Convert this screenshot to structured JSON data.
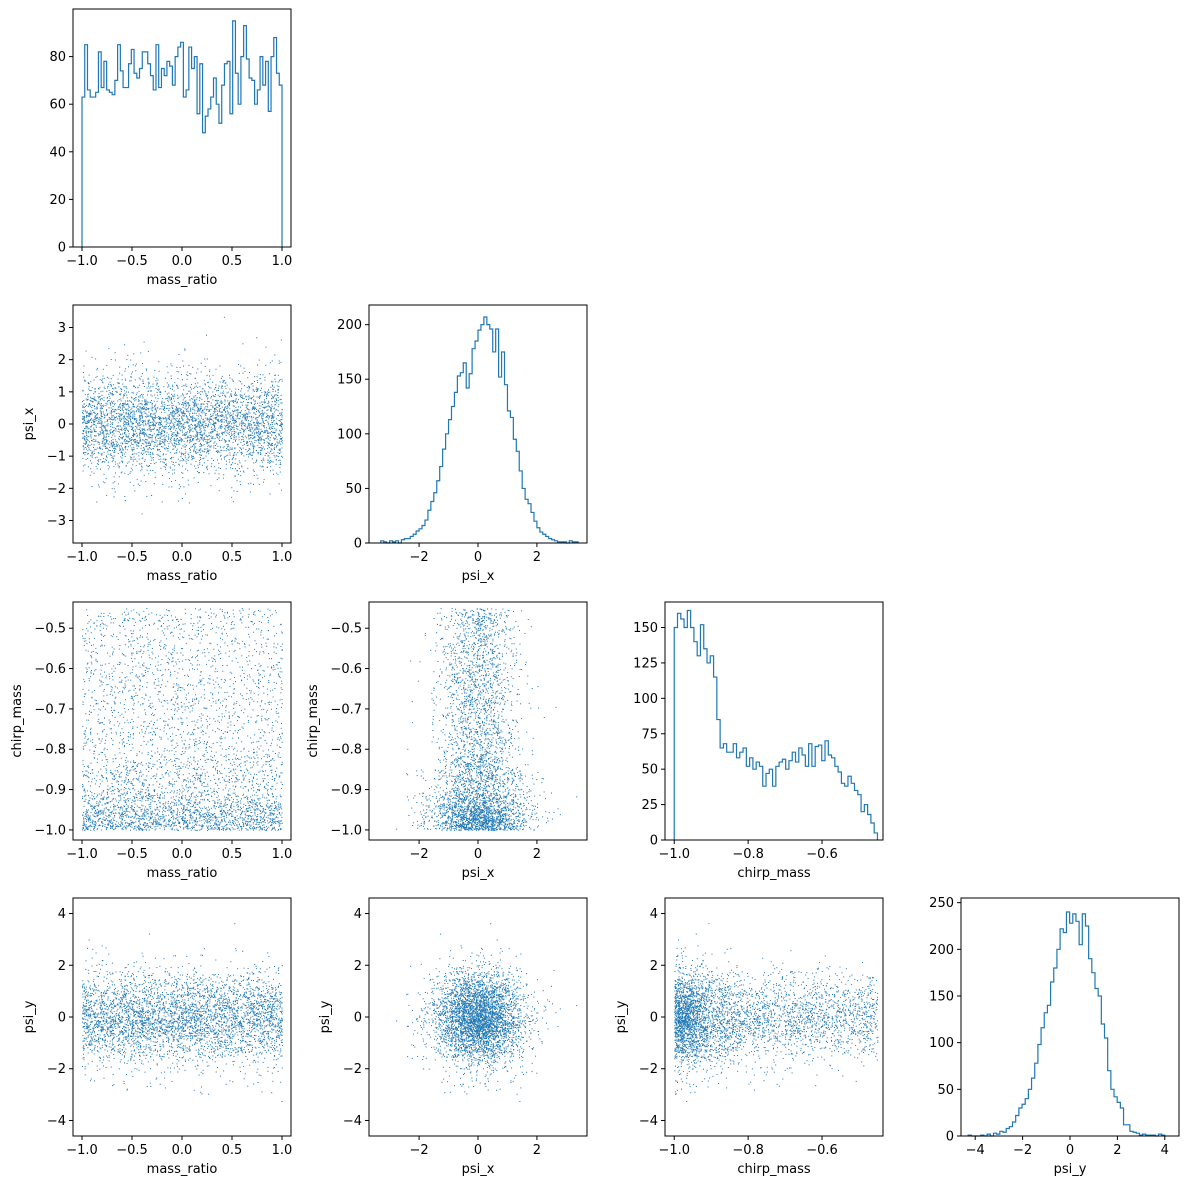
{
  "colors": {
    "accent": "#1f77b4"
  },
  "chart_data": {
    "type": "pair-grid",
    "variables": [
      "mass_ratio",
      "psi_x",
      "chirp_mass",
      "psi_y"
    ],
    "ranges": {
      "mass_ratio": [
        -1.09,
        1.09
      ],
      "psi_x": [
        -3.7,
        3.7
      ],
      "chirp_mass": [
        -1.025,
        -0.435
      ],
      "psi_y": [
        -4.6,
        4.6
      ]
    },
    "ticks": {
      "mass_ratio": [
        -1.0,
        -0.5,
        0.0,
        0.5,
        1.0
      ],
      "psi_x": [
        -3,
        -2,
        -1,
        0,
        1,
        2,
        3
      ],
      "psi_x_hist": [
        -2,
        0,
        2
      ],
      "chirp_mass": [
        -1.0,
        -0.9,
        -0.8,
        -0.7,
        -0.6,
        -0.5
      ],
      "chirp_mass_hist": [
        -1.0,
        -0.8,
        -0.6
      ],
      "psi_y": [
        -4,
        -2,
        0,
        2,
        4
      ]
    },
    "tick_labels": {
      "mass_ratio": [
        "−1.0",
        "−0.5",
        "0.0",
        "0.5",
        "1.0"
      ],
      "psi_x": [
        "−3",
        "−2",
        "−1",
        "0",
        "1",
        "2",
        "3"
      ],
      "psi_x_hist": [
        "−2",
        "0",
        "2"
      ],
      "chirp_mass": [
        "−1.0",
        "−0.9",
        "−0.8",
        "−0.7",
        "−0.6",
        "−0.5"
      ],
      "chirp_mass_hist": [
        "−1.0",
        "−0.8",
        "−0.6"
      ],
      "psi_y": [
        "−4",
        "−2",
        "0",
        "2",
        "4"
      ]
    },
    "histograms": [
      {
        "variable": "mass_ratio",
        "x_start": -1.0,
        "x_end": 1.0,
        "ylim": [
          0,
          100
        ],
        "yticks": [
          0,
          20,
          40,
          60,
          80
        ],
        "ytick_labels": [
          "0",
          "20",
          "40",
          "60",
          "80"
        ],
        "counts": [
          63,
          85,
          66,
          63,
          63,
          65,
          82,
          67,
          78,
          66,
          65,
          64,
          70,
          85,
          74,
          67,
          67,
          77,
          83,
          73,
          71,
          75,
          82,
          82,
          77,
          72,
          66,
          85,
          67,
          75,
          72,
          78,
          76,
          68,
          80,
          84,
          86,
          63,
          66,
          84,
          75,
          80,
          56,
          77,
          48,
          55,
          58,
          63,
          71,
          60,
          52,
          68,
          77,
          78,
          56,
          95,
          73,
          60,
          80,
          93,
          79,
          71,
          70,
          60,
          66,
          80,
          68,
          78,
          57,
          80,
          88,
          73,
          68
        ]
      },
      {
        "variable": "psi_x",
        "x_start": -3.3,
        "x_end": 3.4,
        "ylim": [
          0,
          218
        ],
        "yticks": [
          0,
          50,
          100,
          150,
          200
        ],
        "ytick_labels": [
          "0",
          "50",
          "100",
          "150",
          "200"
        ],
        "counts": [
          2,
          1,
          0,
          2,
          1,
          2,
          0,
          3,
          4,
          4,
          6,
          8,
          11,
          13,
          16,
          21,
          30,
          38,
          46,
          57,
          70,
          86,
          100,
          113,
          125,
          138,
          153,
          156,
          165,
          142,
          155,
          178,
          185,
          195,
          200,
          207,
          200,
          196,
          175,
          196,
          152,
          175,
          145,
          121,
          115,
          95,
          84,
          66,
          50,
          40,
          36,
          28,
          20,
          14,
          10,
          8,
          6,
          4,
          3,
          2,
          1,
          1,
          1,
          0,
          2,
          1,
          1
        ]
      },
      {
        "variable": "chirp_mass",
        "x_start": -1.0,
        "x_end": -0.45,
        "ylim": [
          0,
          168
        ],
        "yticks": [
          0,
          25,
          50,
          75,
          100,
          125,
          150
        ],
        "ytick_labels": [
          "0",
          "25",
          "50",
          "75",
          "100",
          "125",
          "150"
        ],
        "counts": [
          150,
          160,
          156,
          150,
          162,
          150,
          140,
          130,
          152,
          135,
          125,
          130,
          115,
          85,
          65,
          68,
          62,
          62,
          68,
          58,
          62,
          65,
          52,
          58,
          50,
          55,
          52,
          38,
          47,
          50,
          38,
          52,
          55,
          57,
          50,
          56,
          62,
          55,
          65,
          60,
          52,
          68,
          52,
          66,
          67,
          56,
          70,
          60,
          58,
          52,
          48,
          40,
          38,
          45,
          40,
          35,
          32,
          20,
          25,
          18,
          12,
          5
        ]
      },
      {
        "variable": "psi_y",
        "x_start": -4.3,
        "x_end": 4.0,
        "ylim": [
          0,
          255
        ],
        "yticks": [
          0,
          50,
          100,
          150,
          200,
          250
        ],
        "ytick_labels": [
          "0",
          "50",
          "100",
          "150",
          "200",
          "250"
        ],
        "counts": [
          1,
          0,
          0,
          0,
          1,
          0,
          2,
          0,
          3,
          2,
          5,
          4,
          8,
          10,
          15,
          22,
          30,
          34,
          40,
          50,
          62,
          78,
          98,
          116,
          132,
          140,
          165,
          180,
          200,
          222,
          218,
          240,
          228,
          238,
          230,
          205,
          238,
          225,
          190,
          175,
          158,
          150,
          120,
          105,
          70,
          50,
          42,
          36,
          30,
          12,
          12,
          5,
          4,
          3,
          1,
          2,
          1,
          1,
          1,
          0,
          2,
          1
        ]
      }
    ],
    "scatter_points": 4000,
    "marker": "pixel",
    "grid": false,
    "legend": "none"
  }
}
